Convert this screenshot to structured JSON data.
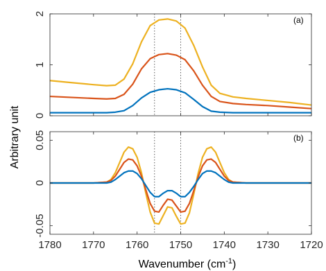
{
  "chart_data": [
    {
      "type": "line",
      "panel_label": "(a)",
      "xlim": [
        1780,
        1720
      ],
      "ylim": [
        0,
        2
      ],
      "x_reversed": true,
      "yticks": [
        0,
        1,
        2
      ],
      "reference_lines_x": [
        1756,
        1750
      ],
      "series": [
        {
          "color": "#edb120",
          "x": [
            1780,
            1775,
            1770,
            1767,
            1765,
            1763,
            1761,
            1759,
            1757,
            1755,
            1753,
            1751,
            1749,
            1747,
            1745,
            1743,
            1741,
            1738,
            1735,
            1730,
            1725,
            1720
          ],
          "y": [
            0.69,
            0.65,
            0.61,
            0.59,
            0.6,
            0.72,
            1.02,
            1.45,
            1.77,
            1.88,
            1.9,
            1.86,
            1.72,
            1.38,
            0.96,
            0.6,
            0.44,
            0.37,
            0.34,
            0.3,
            0.26,
            0.21
          ]
        },
        {
          "color": "#d95319",
          "x": [
            1780,
            1775,
            1770,
            1767,
            1765,
            1763,
            1761,
            1759,
            1757,
            1755,
            1753,
            1751,
            1749,
            1747,
            1745,
            1743,
            1741,
            1738,
            1735,
            1730,
            1725,
            1720
          ],
          "y": [
            0.38,
            0.36,
            0.34,
            0.33,
            0.34,
            0.42,
            0.62,
            0.92,
            1.12,
            1.2,
            1.22,
            1.19,
            1.1,
            0.88,
            0.6,
            0.38,
            0.28,
            0.24,
            0.22,
            0.2,
            0.17,
            0.14
          ]
        },
        {
          "color": "#0072bd",
          "x": [
            1780,
            1775,
            1770,
            1767,
            1765,
            1763,
            1761,
            1759,
            1757,
            1755,
            1753,
            1751,
            1749,
            1747,
            1745,
            1743,
            1741,
            1738,
            1735,
            1730,
            1725,
            1720
          ],
          "y": [
            0.06,
            0.06,
            0.06,
            0.06,
            0.07,
            0.1,
            0.2,
            0.35,
            0.46,
            0.51,
            0.53,
            0.51,
            0.45,
            0.32,
            0.18,
            0.09,
            0.07,
            0.06,
            0.06,
            0.06,
            0.06,
            0.06
          ]
        }
      ]
    },
    {
      "type": "line",
      "panel_label": "(b)",
      "xlim": [
        1780,
        1720
      ],
      "ylim": [
        -0.06,
        0.06
      ],
      "x_reversed": true,
      "xticks": [
        1780,
        1770,
        1760,
        1750,
        1740,
        1730,
        1720
      ],
      "yticks": [
        -0.05,
        0,
        0.05
      ],
      "ytick_labels": [
        "-0.05",
        "0",
        "0.05"
      ],
      "reference_lines_x": [
        1756,
        1750
      ],
      "series": [
        {
          "color": "#edb120",
          "x": [
            1780,
            1770,
            1767,
            1766,
            1765,
            1764,
            1763,
            1762,
            1761,
            1760,
            1759,
            1758,
            1757,
            1756,
            1755,
            1754,
            1753,
            1752,
            1751,
            1750,
            1749,
            1748,
            1747,
            1746,
            1745,
            1744,
            1743,
            1742,
            1741,
            1740,
            1739,
            1738,
            1735,
            1720
          ],
          "y": [
            0,
            0,
            0.001,
            0.004,
            0.012,
            0.024,
            0.036,
            0.042,
            0.04,
            0.03,
            0.012,
            -0.012,
            -0.034,
            -0.047,
            -0.048,
            -0.038,
            -0.028,
            -0.029,
            -0.039,
            -0.048,
            -0.047,
            -0.035,
            -0.013,
            0.011,
            0.03,
            0.04,
            0.042,
            0.036,
            0.024,
            0.012,
            0.004,
            0.001,
            0,
            0
          ]
        },
        {
          "color": "#d95319",
          "x": [
            1780,
            1770,
            1767,
            1766,
            1765,
            1764,
            1763,
            1762,
            1761,
            1760,
            1759,
            1758,
            1757,
            1756,
            1755,
            1754,
            1753,
            1752,
            1751,
            1750,
            1749,
            1748,
            1747,
            1746,
            1745,
            1744,
            1743,
            1742,
            1741,
            1740,
            1739,
            1738,
            1735,
            1720
          ],
          "y": [
            0,
            0,
            0.001,
            0.003,
            0.008,
            0.016,
            0.024,
            0.028,
            0.027,
            0.02,
            0.008,
            -0.008,
            -0.024,
            -0.033,
            -0.034,
            -0.026,
            -0.019,
            -0.02,
            -0.027,
            -0.034,
            -0.033,
            -0.024,
            -0.009,
            0.007,
            0.02,
            0.027,
            0.028,
            0.024,
            0.016,
            0.008,
            0.003,
            0.001,
            0,
            0
          ]
        },
        {
          "color": "#0072bd",
          "x": [
            1780,
            1770,
            1767,
            1766,
            1765,
            1764,
            1763,
            1762,
            1761,
            1760,
            1759,
            1758,
            1757,
            1756,
            1755,
            1754,
            1753,
            1752,
            1751,
            1750,
            1749,
            1748,
            1747,
            1746,
            1745,
            1744,
            1743,
            1742,
            1741,
            1740,
            1739,
            1738,
            1735,
            1720
          ],
          "y": [
            0,
            0,
            0,
            0.001,
            0.004,
            0.008,
            0.012,
            0.014,
            0.014,
            0.011,
            0.005,
            -0.003,
            -0.011,
            -0.016,
            -0.016,
            -0.012,
            -0.009,
            -0.009,
            -0.012,
            -0.016,
            -0.016,
            -0.011,
            -0.004,
            0.004,
            0.011,
            0.014,
            0.014,
            0.012,
            0.008,
            0.004,
            0.001,
            0,
            0,
            0
          ]
        }
      ]
    }
  ],
  "labels": {
    "ylabel": "Arbitrary unit",
    "xlabel_prefix": "Wavenumber (cm",
    "xlabel_exponent": "-1",
    "xlabel_suffix": ")"
  }
}
